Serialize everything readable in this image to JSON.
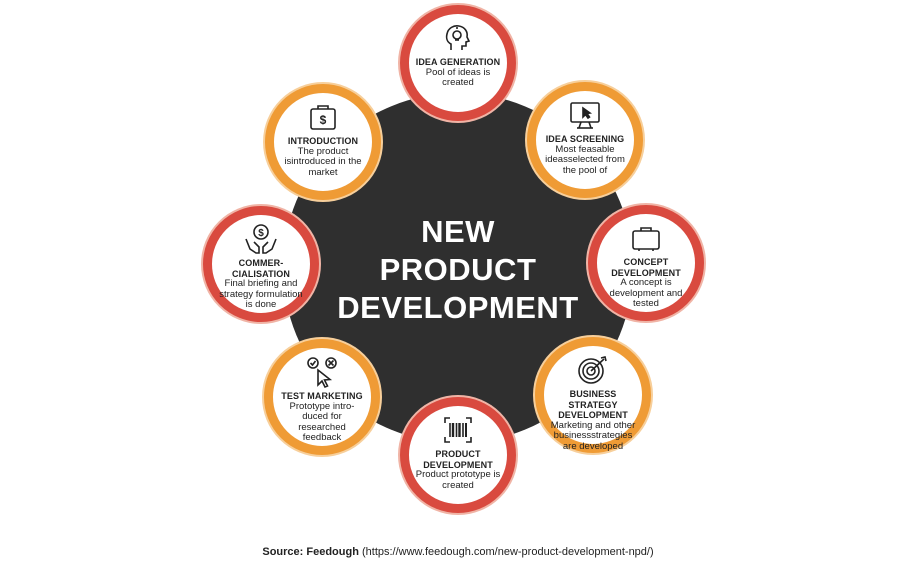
{
  "center": {
    "lines": [
      "NEW",
      "PRODUCT",
      "DEVELOPMENT"
    ]
  },
  "colors": {
    "center": "#2f2f2f",
    "red": "#d94a3f",
    "orange": "#ef9b35"
  },
  "stages": [
    {
      "title": "IDEA GENERATION",
      "desc": "Pool of ideas is created",
      "icon": "head-lightbulb-icon",
      "color": "red"
    },
    {
      "title": "IDEA SCREENING",
      "desc": "Most feasable ideasselected from the pool of",
      "icon": "monitor-cursor-icon",
      "color": "orange"
    },
    {
      "title": "CONCEPT DEVELOPMENT",
      "desc": "A concept is development and tested",
      "icon": "briefcase-icon",
      "color": "red"
    },
    {
      "title": "BUSINESS STRATEGY DEVELOPMENT",
      "desc": "Marketing and other businessstrategies are developed",
      "icon": "target-arrow-icon",
      "color": "orange"
    },
    {
      "title": "PRODUCT DEVELOPMENT",
      "desc": "Product prototype is created",
      "icon": "barcode-icon",
      "color": "red"
    },
    {
      "title": "TEST MARKETING",
      "desc": "Prototype intro-duced for researched feedback",
      "icon": "check-cross-cursor-icon",
      "color": "orange"
    },
    {
      "title": "COMMER-CIALISATION",
      "desc": "Final briefing and strategy formulation is done",
      "icon": "hands-coin-icon",
      "color": "red"
    },
    {
      "title": "INTRODUCTION",
      "desc": "The product isintroduced in the market",
      "icon": "money-case-icon",
      "color": "orange"
    }
  ],
  "caption": {
    "label": "Source: Feedough",
    "url": "(https://www.feedough.com/new-product-development-npd/)"
  }
}
